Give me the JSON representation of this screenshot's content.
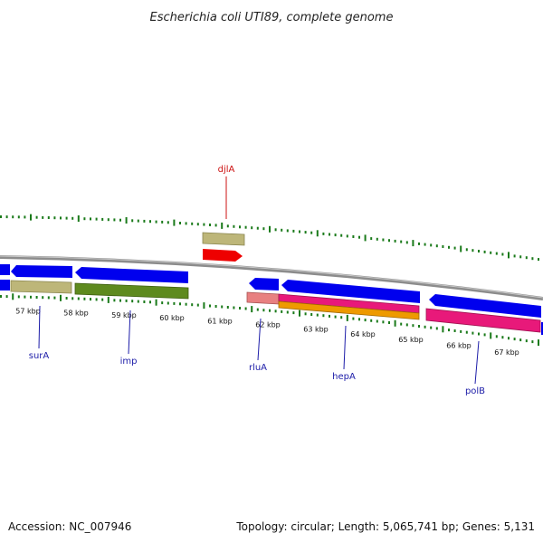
{
  "title": "Escherichia coli UTI89, complete genome",
  "footer": {
    "accession": "Accession: NC_007946",
    "topology": "Topology: circular; Length: 5,065,741 bp; Genes: 5,131"
  },
  "colors": {
    "backbone": "#8c8c8c",
    "tick": "#1a7a1a",
    "cds_blue": "#0000ee",
    "khaki": "#bdb679",
    "olive": "#5e8a1e",
    "red": "#ee0000",
    "pink": "#e8197a",
    "salmon": "#e88080",
    "orange": "#ee9a00",
    "label_blue": "#1c1ca8",
    "label_red": "#cc1111"
  },
  "kbp_labels": [
    "57 kbp",
    "58 kbp",
    "59 kbp",
    "60 kbp",
    "61 kbp",
    "62 kbp",
    "63 kbp",
    "64 kbp",
    "65 kbp",
    "66 kbp",
    "67 kbp"
  ],
  "genes": [
    {
      "name": "surA",
      "color": "label_blue"
    },
    {
      "name": "imp",
      "color": "label_blue"
    },
    {
      "name": "djlA",
      "color": "label_red"
    },
    {
      "name": "rluA",
      "color": "label_blue"
    },
    {
      "name": "hepA",
      "color": "label_blue"
    },
    {
      "name": "polB",
      "color": "label_blue"
    }
  ]
}
